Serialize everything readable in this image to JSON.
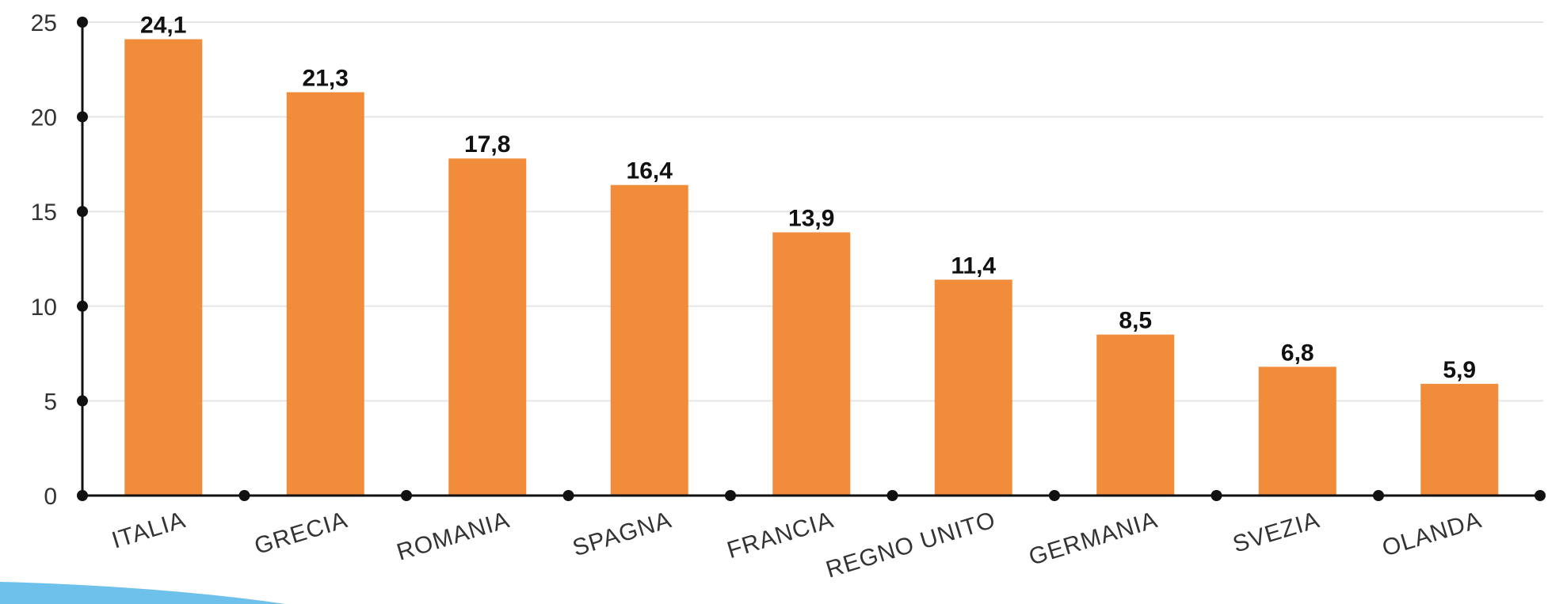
{
  "chart_data": {
    "type": "bar",
    "categories": [
      "ITALIA",
      "GRECIA",
      "ROMANIA",
      "SPAGNA",
      "FRANCIA",
      "REGNO UNITO",
      "GERMANIA",
      "SVEZIA",
      "OLANDA"
    ],
    "values": [
      24.1,
      21.3,
      17.8,
      16.4,
      13.9,
      11.4,
      8.5,
      6.8,
      5.9
    ],
    "value_labels": [
      "24,1",
      "21,3",
      "17,8",
      "16,4",
      "13,9",
      "11,4",
      "8,5",
      "6,8",
      "5,9"
    ],
    "yticks": [
      0,
      5,
      10,
      15,
      20,
      25
    ],
    "ylim": [
      0,
      25
    ],
    "grid": true,
    "bar_color": "#F08C3A",
    "grid_color": "#E6E6E6",
    "axis_color": "#111111",
    "accent_decoration_color": "#6EC1EA"
  }
}
